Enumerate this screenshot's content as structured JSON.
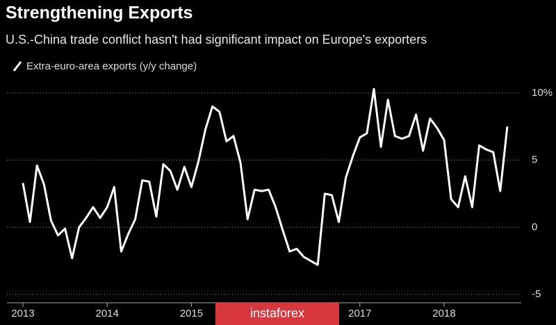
{
  "chart_data": {
    "type": "line",
    "title": "Strengthening Exports",
    "subtitle": "U.S.-China trade conflict hasn't had significant impact on Europe's exporters",
    "watermark": "instaforex",
    "categories": [
      "2013",
      null,
      null,
      null,
      null,
      null,
      null,
      null,
      null,
      null,
      null,
      null,
      "2014",
      null,
      null,
      null,
      null,
      null,
      null,
      null,
      null,
      null,
      null,
      null,
      "2015",
      null,
      null,
      null,
      null,
      null,
      null,
      null,
      null,
      null,
      null,
      null,
      null,
      null,
      null,
      null,
      null,
      null,
      null,
      null,
      null,
      null,
      null,
      null,
      "2017",
      null,
      null,
      null,
      null,
      null,
      null,
      null,
      null,
      null,
      null,
      null,
      "2018",
      null,
      null,
      null,
      null,
      null,
      null,
      null,
      null,
      null
    ],
    "series": [
      {
        "name": "Extra-euro-area exports (y/y change)",
        "color": "#ffffff",
        "values": [
          3.3,
          0.4,
          4.6,
          3.2,
          0.5,
          -0.6,
          -0.1,
          -2.3,
          0,
          0.7,
          1.5,
          0.7,
          1.5,
          3,
          -1.8,
          -0.5,
          0.6,
          3.5,
          3.4,
          0.8,
          4.7,
          4.2,
          2.8,
          4.5,
          3,
          4.9,
          7.3,
          9.0,
          8.6,
          6.4,
          6.8,
          4.8,
          0.6,
          2.8,
          2.7,
          2.8,
          1.5,
          -0.2,
          -1.8,
          -1.6,
          -2.2,
          -2.5,
          -2.8,
          2.5,
          2.4,
          0.4,
          3.7,
          5.3,
          6.7,
          7.0,
          10.3,
          6.0,
          9.5,
          6.8,
          6.6,
          6.8,
          8.4,
          5.7,
          8.1,
          7.4,
          6.5,
          2.1,
          1.5,
          3.8,
          1.5,
          6.1,
          5.8,
          5.6,
          2.7,
          7.5
        ]
      }
    ],
    "ylim": [
      -5,
      10
    ],
    "yticks": [
      -5,
      0,
      5,
      {
        "value": 10,
        "label": "10%"
      }
    ],
    "grid": true
  }
}
